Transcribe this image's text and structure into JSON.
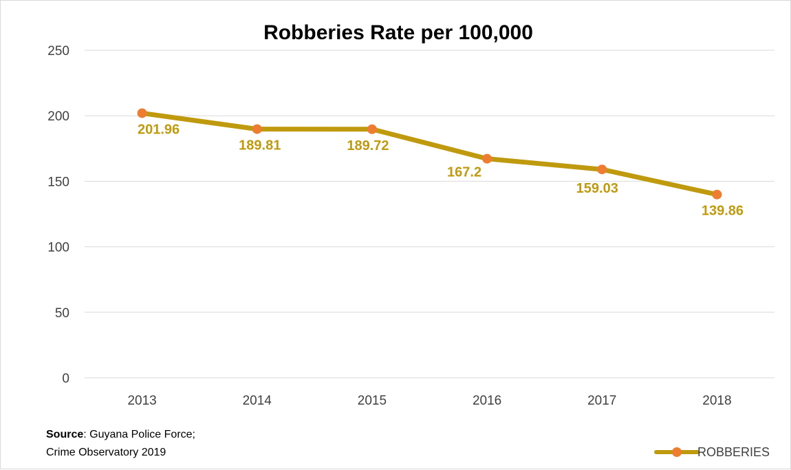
{
  "chart_data": {
    "type": "line",
    "title": "Robberies Rate per 100,000",
    "categories": [
      "2013",
      "2014",
      "2015",
      "2016",
      "2017",
      "2018"
    ],
    "series": [
      {
        "name": "ROBBERIES",
        "values": [
          201.96,
          189.81,
          189.72,
          167.2,
          159.03,
          139.86
        ]
      }
    ],
    "data_labels": [
      "201.96",
      "189.81",
      "189.72",
      "167.2",
      "159.03",
      "139.86"
    ],
    "ylim": [
      0,
      250
    ],
    "yticks": [
      0,
      50,
      100,
      150,
      200,
      250
    ],
    "grid": true,
    "legend_position": "bottom-right",
    "colors": {
      "line": "#c09a0e",
      "marker": "#ed7d31",
      "label": "#c09a0e",
      "grid": "#d9d9d9"
    }
  },
  "source": {
    "label": "Source",
    "line1": ": Guyana Police Force;",
    "line2": "Crime Observatory 2019"
  }
}
